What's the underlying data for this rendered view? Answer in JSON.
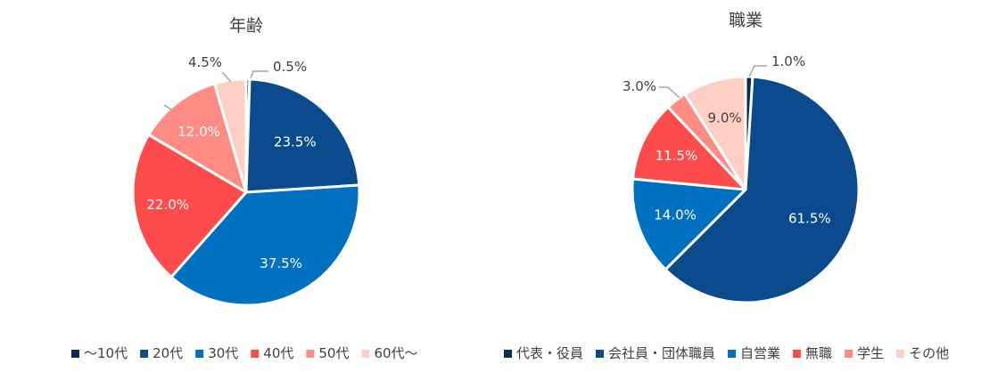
{
  "chart_data": [
    {
      "type": "pie",
      "title": "年齢",
      "categories": [
        "～10代",
        "20代",
        "30代",
        "40代",
        "50代",
        "60代～"
      ],
      "values": [
        0.5,
        23.5,
        37.5,
        22.0,
        12.0,
        4.5
      ],
      "labels": [
        "0.5%",
        "23.5%",
        "37.5%",
        "22.0%",
        "12.0%",
        "4.5%"
      ],
      "colors": [
        "#0a2a5c",
        "#0b4a8c",
        "#0070c0",
        "#ff4b4b",
        "#ff8c84",
        "#ffcfc4"
      ],
      "legend_position": "bottom"
    },
    {
      "type": "pie",
      "title": "職業",
      "categories": [
        "代表・役員",
        "会社員・団体職員",
        "自営業",
        "無職",
        "学生",
        "その他"
      ],
      "values": [
        1.0,
        61.5,
        14.0,
        11.5,
        3.0,
        9.0
      ],
      "labels": [
        "1.0%",
        "61.5%",
        "14.0%",
        "11.5%",
        "3.0%",
        "9.0%"
      ],
      "colors": [
        "#0a2a5c",
        "#0b4a8c",
        "#0070c0",
        "#ff4b4b",
        "#ff8c84",
        "#ffcfc4"
      ],
      "legend_position": "bottom"
    }
  ]
}
